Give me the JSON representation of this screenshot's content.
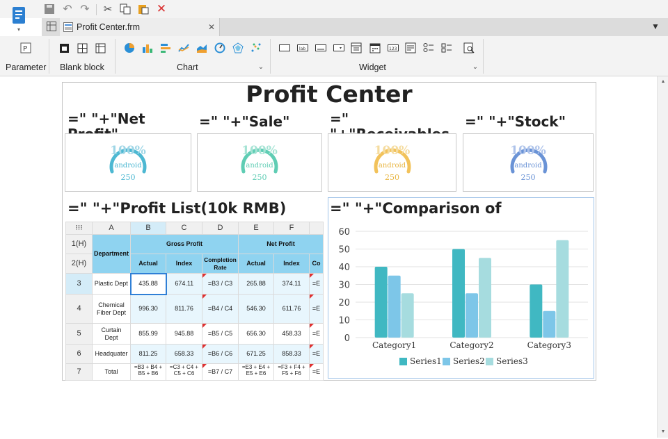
{
  "tab": {
    "filename": "Profit Center.frm"
  },
  "ribbon": {
    "group_parameter": "Parameter",
    "group_blank_block": "Blank block",
    "group_chart": "Chart",
    "group_widget": "Widget"
  },
  "report": {
    "title": "Profit Center",
    "gauge_headers": [
      "=\"  \"+\"Net Profit\"",
      "=\"  \"+\"Sale\"",
      "=\"  \"+\"Receivables\"",
      "=\"  \"+\"Stock\""
    ],
    "gauges": [
      {
        "value": "100%",
        "label": "android",
        "sub": "250",
        "color": "#4db8d2"
      },
      {
        "value": "100%",
        "label": "android",
        "sub": "250",
        "color": "#5fcdb4"
      },
      {
        "value": "100%",
        "label": "android",
        "sub": "250",
        "color": "#f2c25a"
      },
      {
        "value": "100%",
        "label": "android",
        "sub": "250",
        "color": "#6a93d6"
      }
    ],
    "list_title": "=\"  \"+\"Profit List(10k RMB)",
    "comparison_title": "=\"  \"+\"Comparison of"
  },
  "table": {
    "col_headers": [
      "A",
      "B",
      "C",
      "D",
      "E",
      "F",
      ""
    ],
    "row_headers": [
      "1(H)",
      "2(H)",
      "3",
      "4",
      "5",
      "6",
      "7"
    ],
    "department": "Department",
    "gross_profit": "Gross Profit",
    "net_profit": "Net Profit",
    "sub_headers": [
      "Actual",
      "Index",
      "Completion Rate",
      "Actual",
      "Index",
      "Co"
    ],
    "rows": [
      [
        "Plastic Dept",
        "435.88",
        "674.11",
        "=B3 / C3",
        "265.88",
        "374.11",
        "=E"
      ],
      [
        "Chemical Fiber Dept",
        "996.30",
        "811.76",
        "=B4 / C4",
        "546.30",
        "611.76",
        "=E"
      ],
      [
        "Curtain Dept",
        "855.99",
        "945.88",
        "=B5 / C5",
        "656.30",
        "458.33",
        "=E"
      ],
      [
        "Headquater",
        "811.25",
        "658.33",
        "=B6 / C6",
        "671.25",
        "858.33",
        "=E"
      ],
      [
        "Total",
        "=B3 + B4 + B5 + B6",
        "=C3 + C4 + C5 + C6",
        "=B7 / C7",
        "=E3 + E4 + E5 + E6",
        "=F3 + F4 + F5 + F6",
        "=E"
      ]
    ]
  },
  "chart_data": {
    "type": "bar",
    "categories": [
      "Category1",
      "Category2",
      "Category3"
    ],
    "series": [
      {
        "name": "Series1",
        "values": [
          40,
          50,
          30
        ],
        "color": "#40b8c2"
      },
      {
        "name": "Series2",
        "values": [
          35,
          25,
          15
        ],
        "color": "#7dc6e8"
      },
      {
        "name": "Series3",
        "values": [
          25,
          45,
          55
        ],
        "color": "#a6dcdf"
      }
    ],
    "yticks": [
      "0",
      "10",
      "20",
      "30",
      "40",
      "50",
      "60"
    ],
    "ylim": [
      0,
      60
    ],
    "legend": "bottom",
    "grid": true
  }
}
